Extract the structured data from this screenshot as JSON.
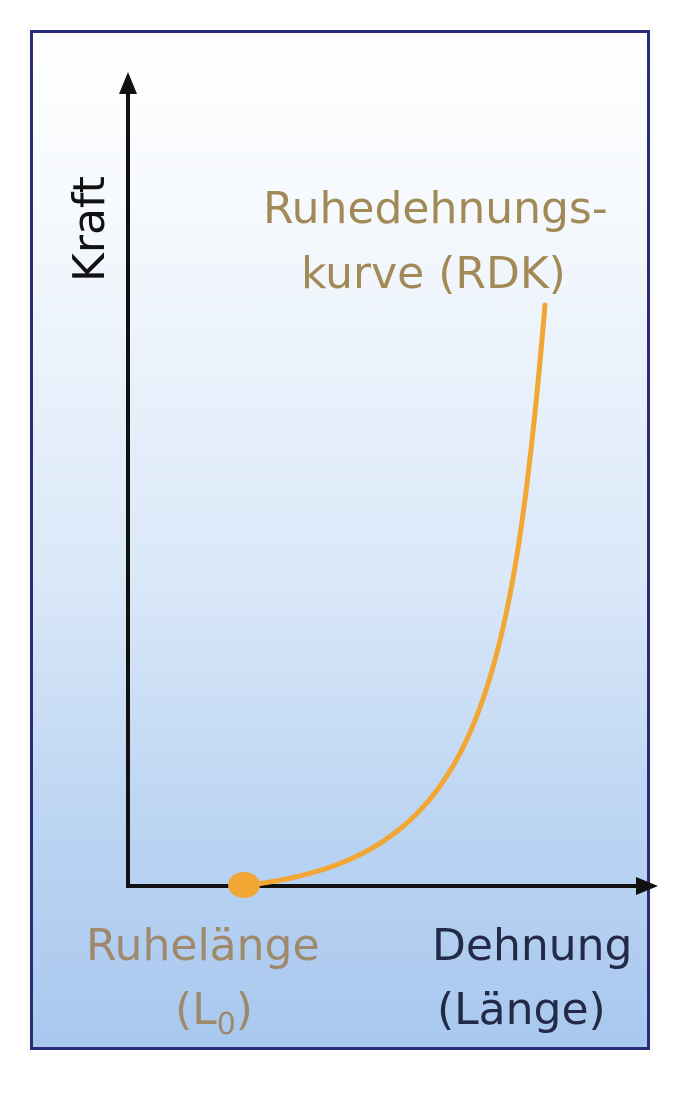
{
  "y_axis_label": "Kraft",
  "curve_label": {
    "line1": "Ruhedehnungs-",
    "line2": "kurve (RDK)"
  },
  "rest_length_label": {
    "line1": "Ruhelänge",
    "line2_prefix": "(L",
    "line2_subscript": "0",
    "line2_suffix": ")"
  },
  "x_axis_label": {
    "line1": "Dehnung",
    "line2": "(Länge)"
  },
  "colors": {
    "curve": "#f2a634",
    "curve_label": "#a28a56",
    "rest_label": "#a0896a",
    "axis": "#111111",
    "x_axis_label": "#232a47",
    "frame": "#2a2e7a",
    "marker": "#f2a634"
  }
}
